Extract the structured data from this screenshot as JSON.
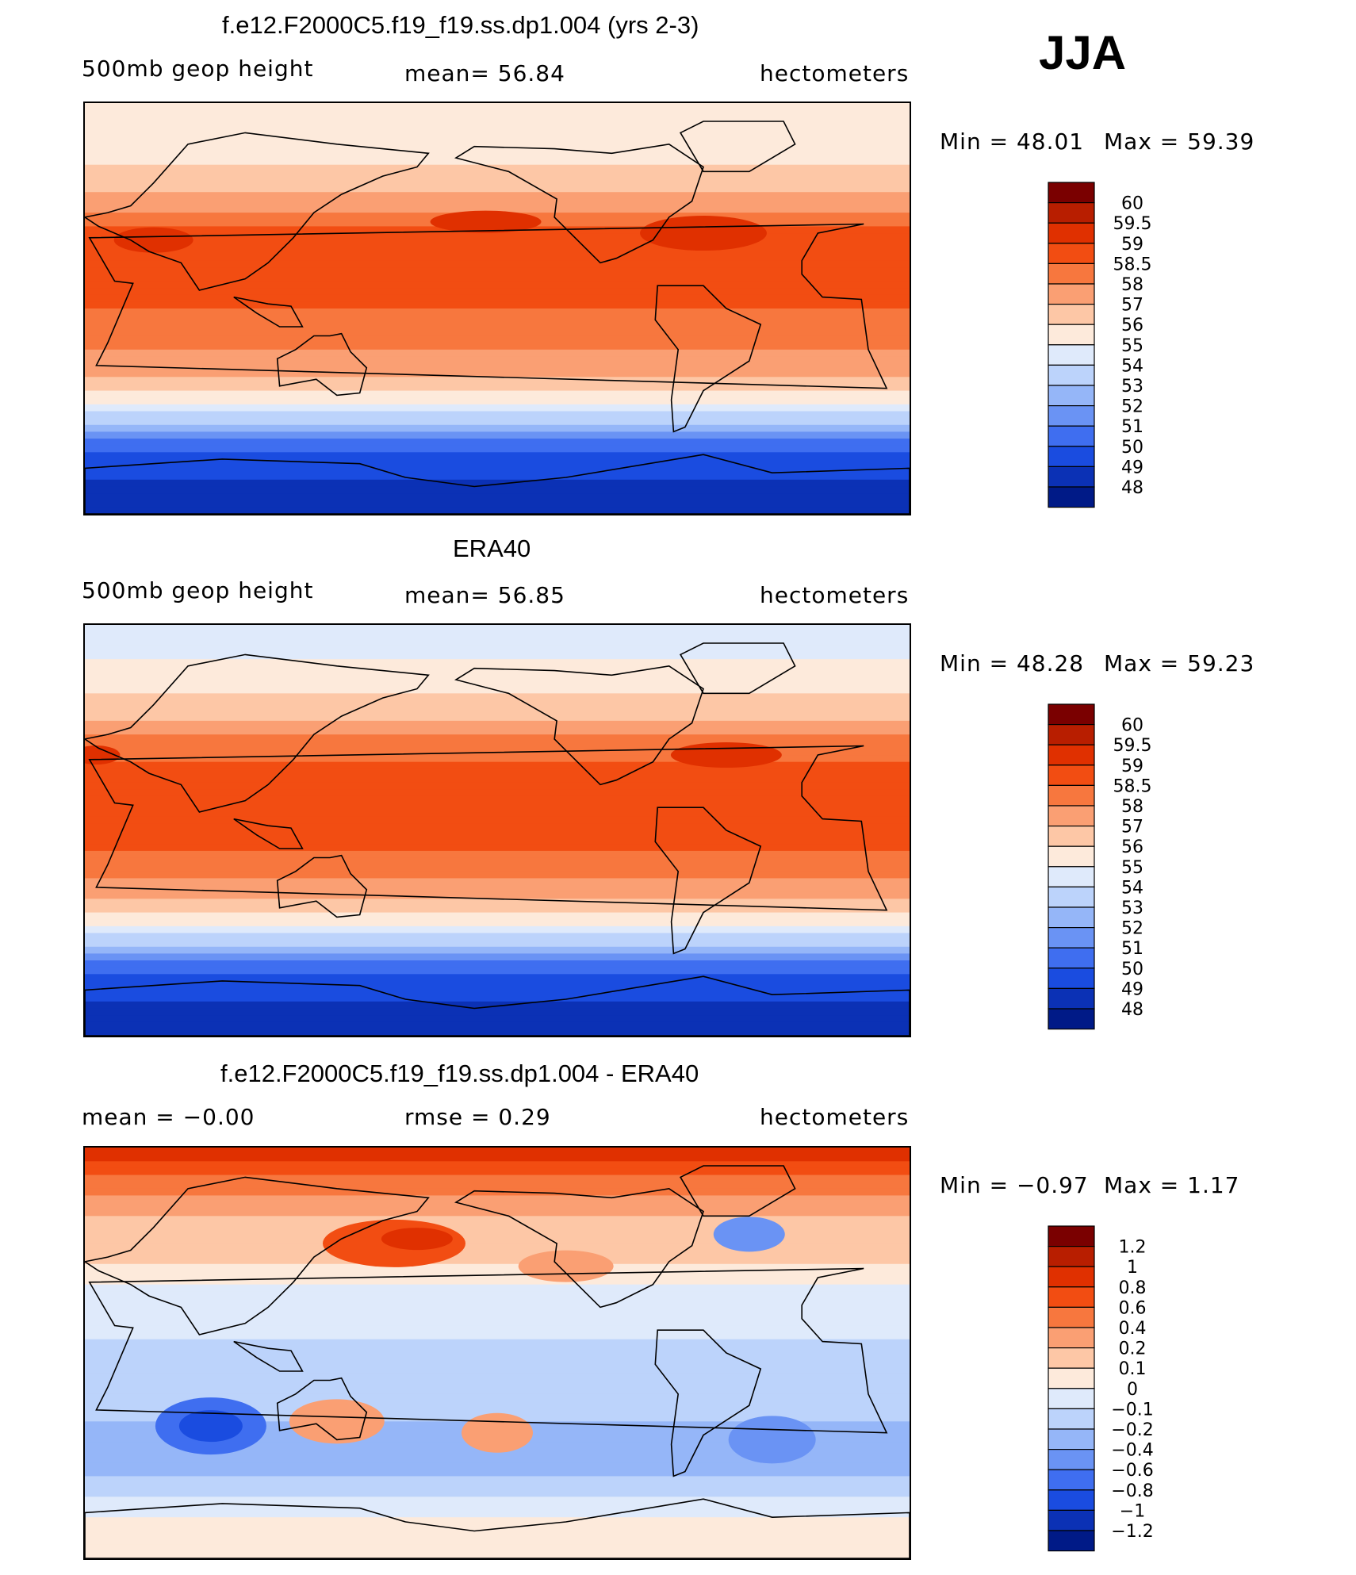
{
  "season": "JJA",
  "panels": [
    {
      "title": "f.e12.F2000C5.f19_f19.ss.dp1.004 (yrs 2-3)",
      "left_label": "500mb  geop  height",
      "mid_label": "mean=   56.84",
      "units": "hectometers",
      "min_text": "Min  =    48.01",
      "max_text": "Max  =    59.39",
      "chart_data": {
        "type": "heatmap",
        "title": "f.e12.F2000C5.f19_f19.ss.dp1.004 (yrs 2-3)",
        "variable": "500mb geop height",
        "units": "hectometers",
        "mean": 56.84,
        "min": 48.01,
        "max": 59.39,
        "colorbar_levels": [
          "60",
          "59.5",
          "59",
          "58.5",
          "58",
          "57",
          "56",
          "55",
          "54",
          "53",
          "52",
          "51",
          "50",
          "49",
          "48"
        ],
        "colors": [
          "#7a0000",
          "#b81e00",
          "#e03000",
          "#f24d12",
          "#f7773e",
          "#fa9f73",
          "#fdc7a6",
          "#fdeadb",
          "#dfeafb",
          "#bcd3fb",
          "#95b6f8",
          "#6a93f4",
          "#3f6ef0",
          "#1a4ce0",
          "#0b31b5",
          "#001a87"
        ],
        "zonal_profile": [
          {
            "lat": 90,
            "value": 55.2
          },
          {
            "lat": 70,
            "value": 55.6
          },
          {
            "lat": 55,
            "value": 56.6
          },
          {
            "lat": 40,
            "value": 58.4
          },
          {
            "lat": 25,
            "value": 58.9
          },
          {
            "lat": 10,
            "value": 58.6
          },
          {
            "lat": -10,
            "value": 58.4
          },
          {
            "lat": -25,
            "value": 57.6
          },
          {
            "lat": -35,
            "value": 56.0
          },
          {
            "lat": -45,
            "value": 54.2
          },
          {
            "lat": -55,
            "value": 51.6
          },
          {
            "lat": -65,
            "value": 49.8
          },
          {
            "lat": -80,
            "value": 48.4
          },
          {
            "lat": -90,
            "value": 48.1
          }
        ]
      }
    },
    {
      "title": "ERA40",
      "left_label": "500mb  geop  height",
      "mid_label": "mean=   56.85",
      "units": "hectometers",
      "min_text": "Min  =    48.28",
      "max_text": "Max  =    59.23",
      "chart_data": {
        "type": "heatmap",
        "title": "ERA40",
        "variable": "500mb geop height",
        "units": "hectometers",
        "mean": 56.85,
        "min": 48.28,
        "max": 59.23,
        "colorbar_levels": [
          "60",
          "59.5",
          "59",
          "58.5",
          "58",
          "57",
          "56",
          "55",
          "54",
          "53",
          "52",
          "51",
          "50",
          "49",
          "48"
        ],
        "colors": [
          "#7a0000",
          "#b81e00",
          "#e03000",
          "#f24d12",
          "#f7773e",
          "#fa9f73",
          "#fdc7a6",
          "#fdeadb",
          "#dfeafb",
          "#bcd3fb",
          "#95b6f8",
          "#6a93f4",
          "#3f6ef0",
          "#1a4ce0",
          "#0b31b5",
          "#001a87"
        ],
        "zonal_profile": [
          {
            "lat": 90,
            "value": 54.6
          },
          {
            "lat": 70,
            "value": 55.1
          },
          {
            "lat": 55,
            "value": 56.3
          },
          {
            "lat": 40,
            "value": 58.2
          },
          {
            "lat": 25,
            "value": 58.7
          },
          {
            "lat": 10,
            "value": 58.6
          },
          {
            "lat": -10,
            "value": 58.5
          },
          {
            "lat": -25,
            "value": 57.8
          },
          {
            "lat": -35,
            "value": 56.2
          },
          {
            "lat": -45,
            "value": 54.3
          },
          {
            "lat": -55,
            "value": 51.6
          },
          {
            "lat": -65,
            "value": 49.8
          },
          {
            "lat": -80,
            "value": 48.5
          },
          {
            "lat": -90,
            "value": 48.3
          }
        ]
      }
    },
    {
      "title": "f.e12.F2000C5.f19_f19.ss.dp1.004 - ERA40",
      "left_label": "mean  =    −0.00",
      "mid_label": "rmse  =     0.29",
      "units": "hectometers",
      "min_text": "Min  =   −0.97",
      "max_text": "Max  =     1.17",
      "chart_data": {
        "type": "heatmap",
        "title": "f.e12.F2000C5.f19_f19.ss.dp1.004 - ERA40",
        "variable": "500mb geop height difference",
        "units": "hectometers",
        "mean": -0.0,
        "rmse": 0.29,
        "min": -0.97,
        "max": 1.17,
        "colorbar_levels": [
          "1.2",
          "1",
          "0.8",
          "0.6",
          "0.4",
          "0.2",
          "0.1",
          "0",
          "−0.1",
          "−0.2",
          "−0.4",
          "−0.6",
          "−0.8",
          "−1",
          "−1.2"
        ],
        "colors": [
          "#7a0000",
          "#b81e00",
          "#e03000",
          "#f24d12",
          "#f7773e",
          "#fa9f73",
          "#fdc7a6",
          "#fdeadb",
          "#dfeafb",
          "#bcd3fb",
          "#95b6f8",
          "#6a93f4",
          "#3f6ef0",
          "#1a4ce0",
          "#0b31b5",
          "#001a87"
        ],
        "zonal_profile": [
          {
            "lat": 90,
            "value": 1.0
          },
          {
            "lat": 75,
            "value": 0.5
          },
          {
            "lat": 60,
            "value": 0.2
          },
          {
            "lat": 45,
            "value": 0.15
          },
          {
            "lat": 30,
            "value": 0.0
          },
          {
            "lat": 15,
            "value": -0.05
          },
          {
            "lat": 0,
            "value": -0.15
          },
          {
            "lat": -15,
            "value": -0.15
          },
          {
            "lat": -30,
            "value": -0.2
          },
          {
            "lat": -45,
            "value": -0.3
          },
          {
            "lat": -60,
            "value": -0.15
          },
          {
            "lat": -75,
            "value": 0.05
          },
          {
            "lat": -90,
            "value": 0.1
          }
        ]
      }
    }
  ]
}
